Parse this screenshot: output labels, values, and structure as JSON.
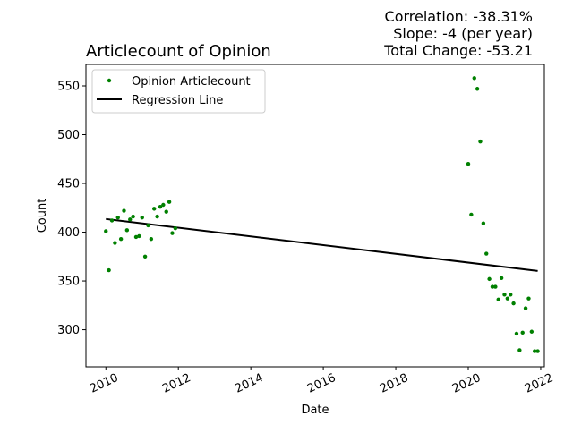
{
  "chart_data": {
    "type": "scatter",
    "title": "Articlecount of Opinion",
    "stats": {
      "correlation": "Correlation: -38.31%",
      "slope": "Slope: -4 (per year)",
      "total_change": "Total Change: -53.21"
    },
    "xlabel": "Date",
    "ylabel": "Count",
    "xlim": [
      2009.45,
      2022.1
    ],
    "ylim": [
      262,
      572
    ],
    "x_ticks": [
      2010,
      2012,
      2014,
      2016,
      2018,
      2020,
      2022
    ],
    "x_tick_labels": [
      "2010",
      "2012",
      "2014",
      "2016",
      "2018",
      "2020",
      "2022"
    ],
    "y_ticks": [
      300,
      350,
      400,
      450,
      500,
      550
    ],
    "y_tick_labels": [
      "300",
      "350",
      "400",
      "450",
      "500",
      "550"
    ],
    "grid": false,
    "legend_position": "top-left",
    "legend": [
      "Opinion Articlecount",
      "Regression Line"
    ],
    "colors": {
      "points": "#008000",
      "line": "#000000"
    },
    "series": [
      {
        "name": "Opinion Articlecount",
        "x": [
          2010.0,
          2010.083,
          2010.167,
          2010.25,
          2010.333,
          2010.417,
          2010.5,
          2010.583,
          2010.667,
          2010.75,
          2010.833,
          2010.917,
          2011.0,
          2011.083,
          2011.167,
          2011.25,
          2011.333,
          2011.417,
          2011.5,
          2011.583,
          2011.667,
          2011.75,
          2011.833,
          2011.917,
          2020.0,
          2020.083,
          2020.167,
          2020.25,
          2020.333,
          2020.417,
          2020.5,
          2020.583,
          2020.667,
          2020.75,
          2020.833,
          2020.917,
          2021.0,
          2021.083,
          2021.167,
          2021.25,
          2021.333,
          2021.417,
          2021.5,
          2021.583,
          2021.667,
          2021.75,
          2021.833,
          2021.917
        ],
        "y": [
          401,
          361,
          412,
          389,
          415,
          393,
          422,
          402,
          413,
          416,
          395,
          396,
          415,
          375,
          407,
          393,
          424,
          416,
          426,
          428,
          421,
          431,
          399,
          404,
          470,
          418,
          558,
          547,
          493,
          409,
          378,
          352,
          344,
          344,
          331,
          353,
          336,
          332,
          336,
          327,
          296,
          279,
          297,
          322,
          332,
          298,
          278,
          278
        ]
      },
      {
        "name": "Regression Line",
        "x": [
          2010.0,
          2021.917
        ],
        "y": [
          413.5,
          360.3
        ]
      }
    ]
  }
}
